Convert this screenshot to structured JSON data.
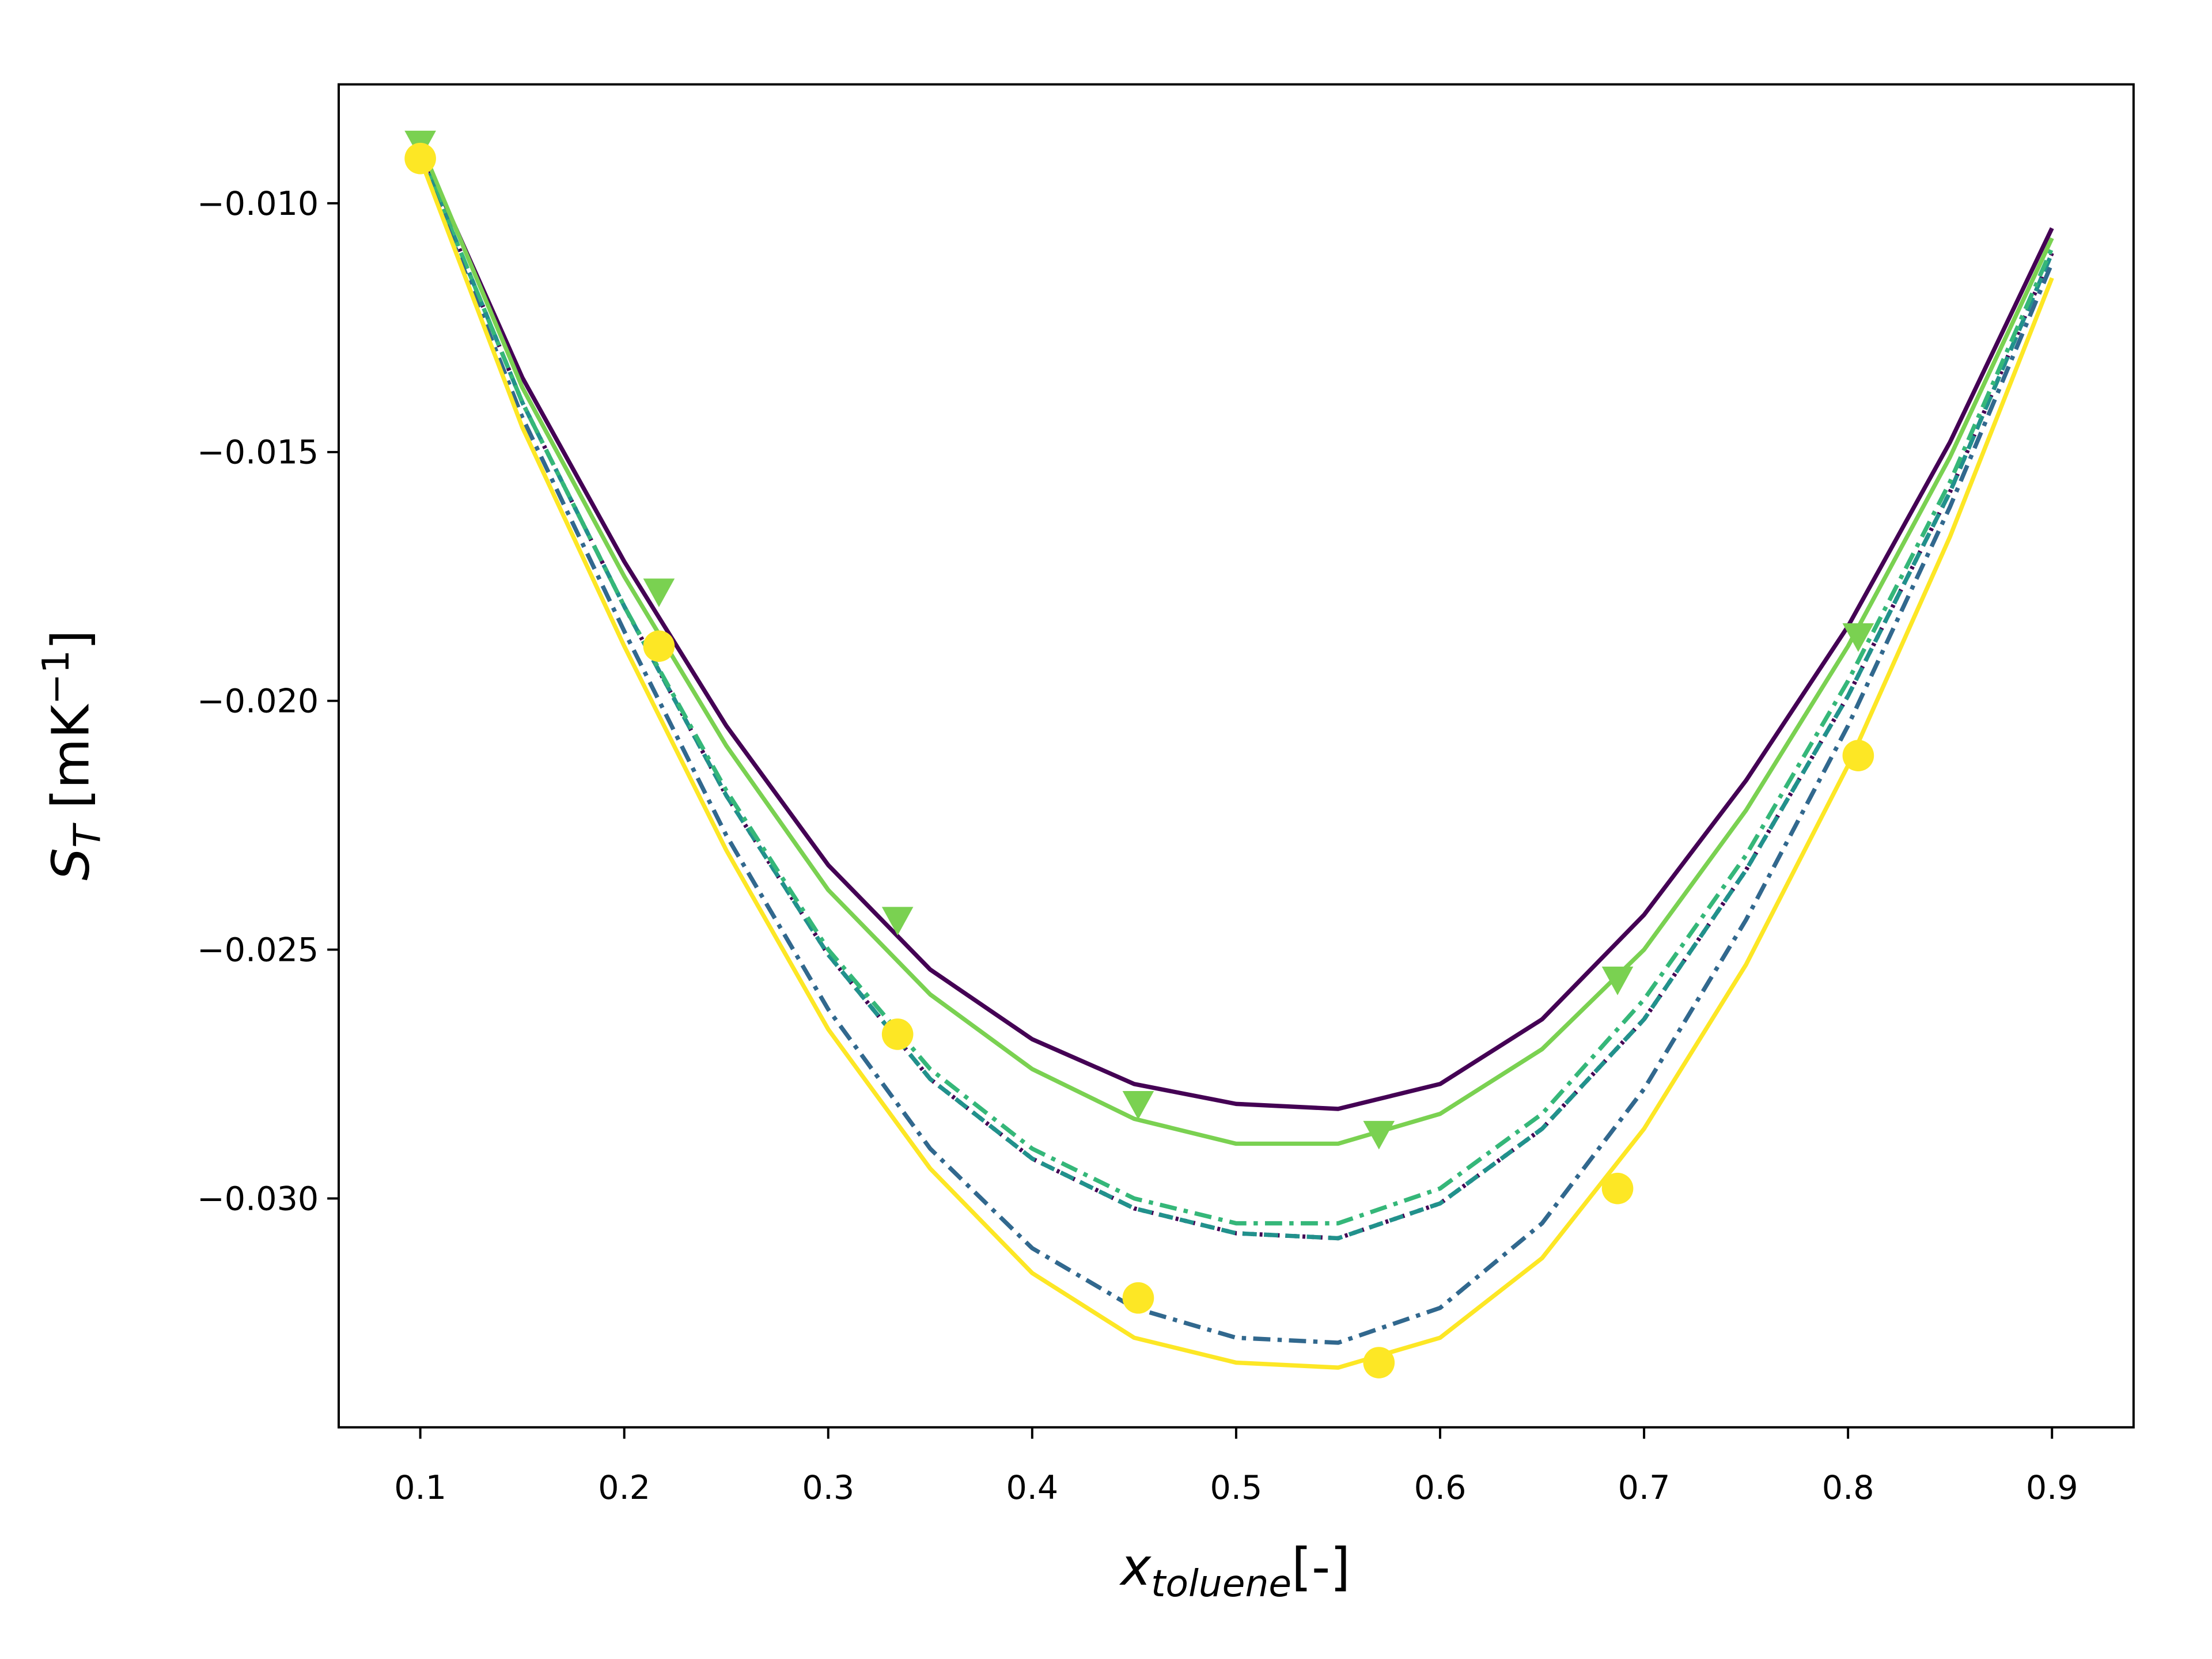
{
  "chart_data": {
    "type": "line",
    "xlabel": [
      "x",
      "toluene",
      "[-]"
    ],
    "ylabel": [
      "S",
      "T",
      " [mK",
      "−1",
      "]"
    ],
    "x": [
      0.1,
      0.15,
      0.2,
      0.25,
      0.3,
      0.35,
      0.4,
      0.45,
      0.5,
      0.55,
      0.6,
      0.65,
      0.7,
      0.75,
      0.8,
      0.85,
      0.9
    ],
    "xlim": [
      0.06,
      0.94
    ],
    "xticks": [
      0.1,
      0.2,
      0.3,
      0.4,
      0.5,
      0.6,
      0.7,
      0.8,
      0.9
    ],
    "ylim": [
      -0.0346,
      -0.00761
    ],
    "yticks": [
      {
        "value": -0.01,
        "label": "−0.010"
      },
      {
        "value": -0.015,
        "label": "−0.015"
      },
      {
        "value": -0.02,
        "label": "−0.020"
      },
      {
        "value": -0.025,
        "label": "−0.025"
      },
      {
        "value": -0.03,
        "label": "−0.030"
      }
    ],
    "grid": false,
    "series": [
      {
        "color": "#440154",
        "linestyle": "solid",
        "values": [
          -0.0089,
          -0.0135,
          -0.0172,
          -0.0205,
          -0.0233,
          -0.0254,
          -0.0268,
          -0.0277,
          -0.0281,
          -0.0282,
          -0.0277,
          -0.0264,
          -0.0243,
          -0.0216,
          -0.0185,
          -0.0148,
          -0.0105
        ]
      },
      {
        "color": "#7ad151",
        "linestyle": "solid",
        "values": [
          -0.0088,
          -0.0137,
          -0.0175,
          -0.0209,
          -0.0238,
          -0.0259,
          -0.0274,
          -0.0284,
          -0.0289,
          -0.0289,
          -0.0283,
          -0.027,
          -0.025,
          -0.0222,
          -0.0189,
          -0.0151,
          -0.0107
        ]
      },
      {
        "color": "#440154",
        "linestyle": "dotted",
        "values": [
          -0.009,
          -0.014,
          -0.0181,
          -0.0219,
          -0.0251,
          -0.0276,
          -0.0292,
          -0.0302,
          -0.0307,
          -0.0308,
          -0.0301,
          -0.0286,
          -0.0264,
          -0.0234,
          -0.0199,
          -0.0158,
          -0.011
        ]
      },
      {
        "color": "#21918c",
        "linestyle": "dashed",
        "values": [
          -0.009,
          -0.014,
          -0.0181,
          -0.0219,
          -0.0251,
          -0.0276,
          -0.0292,
          -0.0302,
          -0.0307,
          -0.0308,
          -0.0301,
          -0.0286,
          -0.0264,
          -0.0234,
          -0.0199,
          -0.0158,
          -0.011
        ]
      },
      {
        "color": "#35b779",
        "linestyle": "dashdot",
        "values": [
          -0.009,
          -0.014,
          -0.0181,
          -0.0218,
          -0.025,
          -0.0274,
          -0.029,
          -0.03,
          -0.0305,
          -0.0305,
          -0.0298,
          -0.0283,
          -0.026,
          -0.0231,
          -0.0196,
          -0.0156,
          -0.0109
        ]
      },
      {
        "color": "#31688e",
        "linestyle": "dashdot",
        "values": [
          -0.0091,
          -0.0143,
          -0.0186,
          -0.0227,
          -0.0262,
          -0.029,
          -0.031,
          -0.0322,
          -0.0328,
          -0.0329,
          -0.0322,
          -0.0305,
          -0.0278,
          -0.0244,
          -0.0205,
          -0.0161,
          -0.0112
        ]
      },
      {
        "color": "#fde725",
        "linestyle": "solid",
        "values": [
          -0.0091,
          -0.0145,
          -0.0189,
          -0.023,
          -0.0266,
          -0.0294,
          -0.0315,
          -0.0328,
          -0.0333,
          -0.0334,
          -0.0328,
          -0.0312,
          -0.0286,
          -0.0253,
          -0.0213,
          -0.0167,
          -0.0115
        ]
      },
      {
        "color": "#7ad151",
        "linestyle": "none",
        "marker": "triangle",
        "x": [
          0.1,
          0.217,
          0.334,
          0.452,
          0.57,
          0.687,
          0.805
        ],
        "values": [
          -0.0088,
          -0.0178,
          -0.0244,
          -0.0281,
          -0.0287,
          -0.0256,
          -0.0187
        ]
      },
      {
        "color": "#fde725",
        "linestyle": "none",
        "marker": "circle",
        "x": [
          0.1,
          0.217,
          0.334,
          0.452,
          0.57,
          0.687,
          0.805
        ],
        "values": [
          -0.0091,
          -0.0189,
          -0.0267,
          -0.032,
          -0.0333,
          -0.0298,
          -0.0211
        ]
      }
    ]
  }
}
